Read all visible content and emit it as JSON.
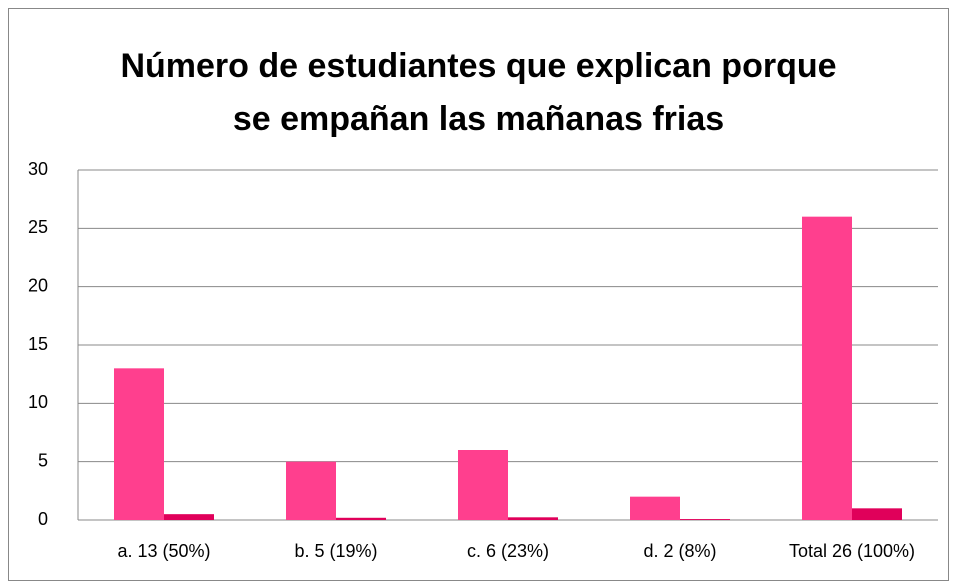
{
  "chart_data": {
    "type": "bar",
    "title": "Número de estudiantes que explican porque se empañan las mañanas frias",
    "categories": [
      "a. 13 (50%)",
      "b. 5 (19%)",
      "c. 6 (23%)",
      "d. 2 (8%)",
      "Total 26 (100%)"
    ],
    "series": [
      {
        "color": "#ff3f8e",
        "values": [
          13,
          5,
          6,
          2,
          26
        ]
      },
      {
        "color": "#e0005a",
        "values": [
          0.5,
          0.19,
          0.23,
          0.08,
          1
        ]
      }
    ],
    "ylim": [
      0,
      30
    ],
    "yticks": [
      0,
      5,
      10,
      15,
      20,
      25,
      30
    ],
    "grid": true
  }
}
